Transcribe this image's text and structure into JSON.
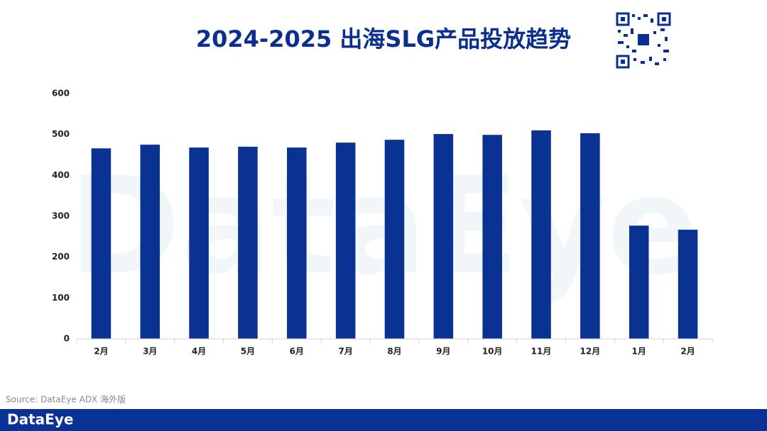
{
  "chart_data": {
    "type": "bar",
    "title": "2024-2025 出海SLG产品投放趋势",
    "categories": [
      "2月",
      "3月",
      "4月",
      "5月",
      "6月",
      "7月",
      "8月",
      "9月",
      "10月",
      "11月",
      "12月",
      "1月",
      "2月"
    ],
    "values": [
      466,
      475,
      468,
      470,
      468,
      480,
      487,
      501,
      499,
      510,
      503,
      277,
      267
    ],
    "color": "#0a3293",
    "ylim": [
      0,
      600
    ],
    "yticks": [
      0,
      100,
      200,
      300,
      400,
      500,
      600
    ],
    "grid": false,
    "source": "Source: DataEye ADX 海外版",
    "watermark": "DataEye",
    "brand": "DataEye"
  }
}
